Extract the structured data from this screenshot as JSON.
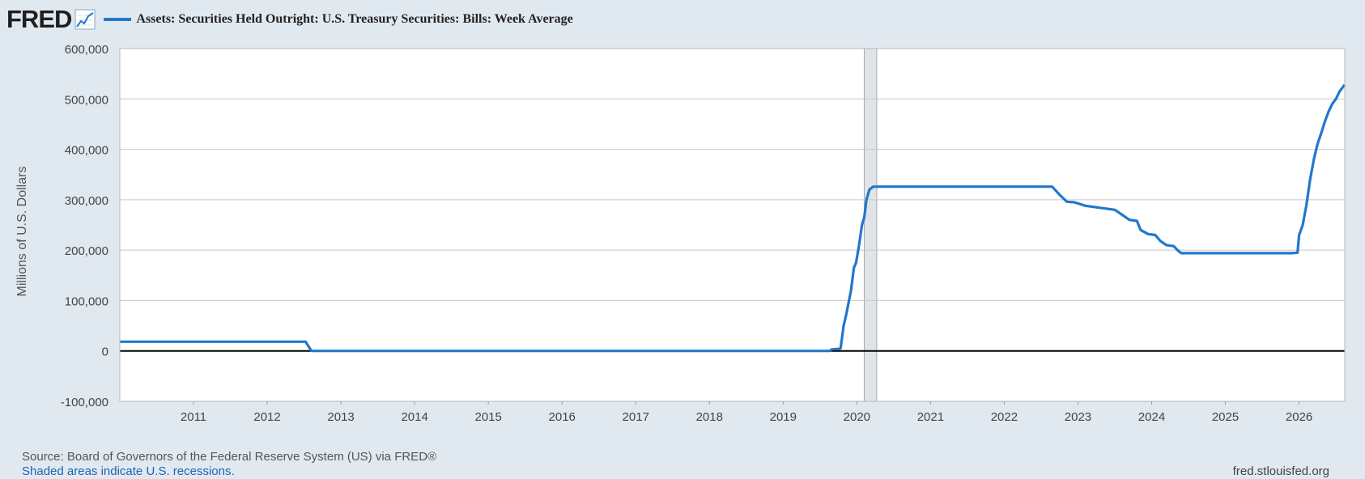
{
  "header": {
    "logo": "FRED",
    "logo_icon": "line-chart-icon",
    "series_label": "Assets: Securities Held Outright: U.S. Treasury Securities: Bills: Week Average"
  },
  "footer": {
    "source": "Source: Board of Governors of the Federal Reserve System (US) via FRED®",
    "shaded_note": "Shaded areas indicate U.S. recessions.",
    "site": "fred.stlouisfed.org"
  },
  "colors": {
    "background": "#e1e9f0",
    "plot_background": "#ffffff",
    "series_line": "#2277cc",
    "recession_shade": "#e0e4e8",
    "zero_line": "#000000",
    "grid": "#c8c8c8"
  },
  "chart_data": {
    "type": "line",
    "title": "",
    "xlabel": "",
    "ylabel": "Millions of U.S. Dollars",
    "xlim": [
      2010.0,
      2026.62
    ],
    "ylim": [
      -100000,
      600000
    ],
    "y_ticks": [
      -100000,
      0,
      100000,
      200000,
      300000,
      400000,
      500000,
      600000
    ],
    "y_tick_labels": [
      "-100,000",
      "0",
      "100,000",
      "200,000",
      "300,000",
      "400,000",
      "500,000",
      "600,000"
    ],
    "x_ticks": [
      2011,
      2012,
      2013,
      2014,
      2015,
      2016,
      2017,
      2018,
      2019,
      2020,
      2021,
      2022,
      2023,
      2024,
      2025,
      2026
    ],
    "x_tick_labels": [
      "2011",
      "2012",
      "2013",
      "2014",
      "2015",
      "2016",
      "2017",
      "2018",
      "2019",
      "2020",
      "2021",
      "2022",
      "2023",
      "2024",
      "2025",
      "2026"
    ],
    "grid": true,
    "legend_position": "top-left",
    "recessions": [
      {
        "start": 2020.1,
        "end": 2020.27
      }
    ],
    "series": [
      {
        "name": "Assets: Securities Held Outright: U.S. Treasury Securities: Bills: Week Average",
        "points": [
          [
            2010.0,
            18400
          ],
          [
            2012.52,
            18400
          ],
          [
            2012.6,
            0
          ],
          [
            2019.63,
            0
          ],
          [
            2019.66,
            3000
          ],
          [
            2019.75,
            4000
          ],
          [
            2019.78,
            5000
          ],
          [
            2019.82,
            50000
          ],
          [
            2019.86,
            75000
          ],
          [
            2019.92,
            120000
          ],
          [
            2019.96,
            165000
          ],
          [
            2019.99,
            175000
          ],
          [
            2020.03,
            210000
          ],
          [
            2020.07,
            250000
          ],
          [
            2020.1,
            265000
          ],
          [
            2020.13,
            300000
          ],
          [
            2020.17,
            320000
          ],
          [
            2020.22,
            326000
          ],
          [
            2022.5,
            326000
          ],
          [
            2022.65,
            326000
          ],
          [
            2022.75,
            310000
          ],
          [
            2022.85,
            296000
          ],
          [
            2022.95,
            295000
          ],
          [
            2023.1,
            288000
          ],
          [
            2023.3,
            284000
          ],
          [
            2023.5,
            280000
          ],
          [
            2023.6,
            270000
          ],
          [
            2023.7,
            260000
          ],
          [
            2023.8,
            258000
          ],
          [
            2023.85,
            240000
          ],
          [
            2023.95,
            232000
          ],
          [
            2024.05,
            230000
          ],
          [
            2024.12,
            218000
          ],
          [
            2024.2,
            210000
          ],
          [
            2024.3,
            208000
          ],
          [
            2024.35,
            200000
          ],
          [
            2024.4,
            194000
          ],
          [
            2025.9,
            194000
          ],
          [
            2025.98,
            195000
          ],
          [
            2026.0,
            230000
          ],
          [
            2026.05,
            250000
          ],
          [
            2026.1,
            290000
          ],
          [
            2026.15,
            340000
          ],
          [
            2026.2,
            380000
          ],
          [
            2026.25,
            410000
          ],
          [
            2026.3,
            432000
          ],
          [
            2026.35,
            455000
          ],
          [
            2026.4,
            475000
          ],
          [
            2026.45,
            490000
          ],
          [
            2026.5,
            500000
          ],
          [
            2026.55,
            515000
          ],
          [
            2026.62,
            528000
          ]
        ]
      }
    ]
  }
}
